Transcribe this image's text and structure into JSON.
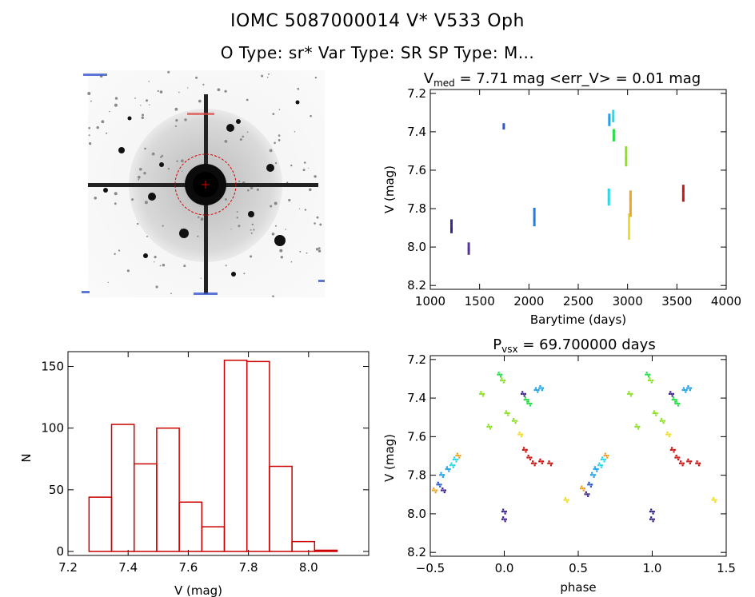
{
  "header": {
    "title": "IOMC 5087000014    V* V533 Oph",
    "subtitle": "O Type: sr*  Var Type: SR  SP Type: M..."
  },
  "colors": {
    "histogram": "#cc0000",
    "finder_circle": "#dd0000",
    "palette": [
      "#3a1f8a",
      "#2255cc",
      "#1aa0e8",
      "#22d8e8",
      "#22dd44",
      "#88e020",
      "#eedd22",
      "#f0a020",
      "#e05010",
      "#cc1010"
    ]
  },
  "chart_data": [
    {
      "id": "lightcurve",
      "type": "scatter",
      "title_prefix": "V",
      "title_sub": "med",
      "title_rest": " = 7.71 mag <err_V> = 0.01 mag",
      "xlabel": "Barytime (days)",
      "ylabel": "V (mag)",
      "xlim": [
        1000,
        4000
      ],
      "ylim": [
        8.22,
        7.18
      ],
      "xticks": [
        1000,
        1500,
        2000,
        2500,
        3000,
        3500,
        4000
      ],
      "yticks": [
        7.2,
        7.4,
        7.6,
        7.8,
        8.0,
        8.2
      ],
      "groups": [
        {
          "x": 1215,
          "y": [
            7.86,
            7.93
          ],
          "color": "#3a1f8a"
        },
        {
          "x": 1390,
          "y": [
            7.98,
            8.04
          ],
          "color": "#5030a0"
        },
        {
          "x": 1745,
          "y": [
            7.36,
            7.39
          ],
          "color": "#3050c0"
        },
        {
          "x": 2055,
          "y": [
            7.8,
            7.89
          ],
          "color": "#2277dd"
        },
        {
          "x": 2815,
          "y": [
            7.31,
            7.37
          ],
          "color": "#1aa0e8"
        },
        {
          "x": 2855,
          "y": [
            7.29,
            7.35
          ],
          "color": "#22d8e8"
        },
        {
          "x": 2810,
          "y": [
            7.7,
            7.78
          ],
          "color": "#22d8e8"
        },
        {
          "x": 2860,
          "y": [
            7.39,
            7.45
          ],
          "color": "#22dd44"
        },
        {
          "x": 2985,
          "y": [
            7.48,
            7.58
          ],
          "color": "#88e020"
        },
        {
          "x": 3015,
          "y": [
            7.83,
            7.96
          ],
          "color": "#eedd22"
        },
        {
          "x": 3030,
          "y": [
            7.71,
            7.84
          ],
          "color": "#f0a020"
        },
        {
          "x": 3565,
          "y": [
            7.68,
            7.76
          ],
          "color": "#cc1010"
        }
      ]
    },
    {
      "id": "histogram",
      "type": "bar",
      "xlabel": "V (mag)",
      "ylabel": "N",
      "xlim": [
        7.2,
        8.2
      ],
      "ylim": [
        0,
        162
      ],
      "xticks": [
        7.2,
        7.4,
        7.6,
        7.8,
        8.0
      ],
      "yticks": [
        0,
        50,
        100,
        150
      ],
      "bin_edges": [
        7.27,
        7.345,
        7.42,
        7.495,
        7.57,
        7.645,
        7.72,
        7.795,
        7.87,
        7.945,
        8.02,
        8.095
      ],
      "counts": [
        44,
        103,
        71,
        100,
        40,
        20,
        155,
        154,
        69,
        8,
        1
      ]
    },
    {
      "id": "phased",
      "type": "scatter",
      "title_prefix": "P",
      "title_sub": "vsx",
      "title_rest": " = 69.700000 days",
      "xlabel": "phase",
      "ylabel": "V (mag)",
      "xlim": [
        -0.5,
        1.5
      ],
      "ylim": [
        8.22,
        7.18
      ],
      "xticks": [
        -0.5,
        0.0,
        0.5,
        1.0,
        1.5
      ],
      "xticklabels": [
        "−0.5",
        "0.0",
        "0.5",
        "1.0",
        "1.5"
      ],
      "yticks": [
        7.2,
        7.4,
        7.6,
        7.8,
        8.0,
        8.2
      ],
      "points": [
        {
          "p": -0.47,
          "v": 7.88,
          "c": "#f0a020"
        },
        {
          "p": -0.44,
          "v": 7.85,
          "c": "#2255cc"
        },
        {
          "p": -0.42,
          "v": 7.8,
          "c": "#1aa0e8"
        },
        {
          "p": -0.41,
          "v": 7.88,
          "c": "#3a1f8a"
        },
        {
          "p": -0.38,
          "v": 7.77,
          "c": "#1aa0e8"
        },
        {
          "p": -0.35,
          "v": 7.75,
          "c": "#22d8e8"
        },
        {
          "p": -0.33,
          "v": 7.72,
          "c": "#22d8e8"
        },
        {
          "p": -0.31,
          "v": 7.7,
          "c": "#f0a020"
        },
        {
          "p": -0.15,
          "v": 7.38,
          "c": "#88e020"
        },
        {
          "p": -0.1,
          "v": 7.55,
          "c": "#88e020"
        },
        {
          "p": -0.03,
          "v": 7.28,
          "c": "#22dd44"
        },
        {
          "p": -0.01,
          "v": 7.31,
          "c": "#88e020"
        },
        {
          "p": 0.0,
          "v": 7.99,
          "c": "#3a1f8a"
        },
        {
          "p": 0.0,
          "v": 8.03,
          "c": "#3a1f8a"
        },
        {
          "p": 0.02,
          "v": 7.48,
          "c": "#88e020"
        },
        {
          "p": 0.07,
          "v": 7.52,
          "c": "#88e020"
        },
        {
          "p": 0.11,
          "v": 7.59,
          "c": "#eedd22"
        },
        {
          "p": 0.13,
          "v": 7.38,
          "c": "#3a1f8a"
        },
        {
          "p": 0.15,
          "v": 7.41,
          "c": "#22dd44"
        },
        {
          "p": 0.17,
          "v": 7.43,
          "c": "#22dd44"
        },
        {
          "p": 0.14,
          "v": 7.67,
          "c": "#cc1010"
        },
        {
          "p": 0.17,
          "v": 7.71,
          "c": "#cc1010"
        },
        {
          "p": 0.2,
          "v": 7.74,
          "c": "#cc1010"
        },
        {
          "p": 0.22,
          "v": 7.36,
          "c": "#1aa0e8"
        },
        {
          "p": 0.25,
          "v": 7.35,
          "c": "#1aa0e8"
        },
        {
          "p": 0.25,
          "v": 7.73,
          "c": "#cc1010"
        },
        {
          "p": 0.31,
          "v": 7.74,
          "c": "#cc1010"
        },
        {
          "p": 0.42,
          "v": 7.93,
          "c": "#eedd22"
        },
        {
          "p": 0.53,
          "v": 7.87,
          "c": "#f0a020"
        },
        {
          "p": 0.56,
          "v": 7.9,
          "c": "#3a1f8a"
        },
        {
          "p": 0.58,
          "v": 7.85,
          "c": "#2255cc"
        },
        {
          "p": 0.6,
          "v": 7.8,
          "c": "#1aa0e8"
        },
        {
          "p": 0.62,
          "v": 7.77,
          "c": "#1aa0e8"
        },
        {
          "p": 0.65,
          "v": 7.75,
          "c": "#22d8e8"
        },
        {
          "p": 0.67,
          "v": 7.72,
          "c": "#22d8e8"
        },
        {
          "p": 0.69,
          "v": 7.7,
          "c": "#f0a020"
        },
        {
          "p": 0.85,
          "v": 7.38,
          "c": "#88e020"
        },
        {
          "p": 0.9,
          "v": 7.55,
          "c": "#88e020"
        },
        {
          "p": 0.97,
          "v": 7.28,
          "c": "#22dd44"
        },
        {
          "p": 0.99,
          "v": 7.31,
          "c": "#88e020"
        },
        {
          "p": 1.0,
          "v": 7.99,
          "c": "#3a1f8a"
        },
        {
          "p": 1.0,
          "v": 8.03,
          "c": "#3a1f8a"
        },
        {
          "p": 1.02,
          "v": 7.48,
          "c": "#88e020"
        },
        {
          "p": 1.07,
          "v": 7.52,
          "c": "#88e020"
        },
        {
          "p": 1.11,
          "v": 7.59,
          "c": "#eedd22"
        },
        {
          "p": 1.13,
          "v": 7.38,
          "c": "#3a1f8a"
        },
        {
          "p": 1.15,
          "v": 7.41,
          "c": "#22dd44"
        },
        {
          "p": 1.17,
          "v": 7.43,
          "c": "#22dd44"
        },
        {
          "p": 1.14,
          "v": 7.67,
          "c": "#cc1010"
        },
        {
          "p": 1.17,
          "v": 7.71,
          "c": "#cc1010"
        },
        {
          "p": 1.2,
          "v": 7.74,
          "c": "#cc1010"
        },
        {
          "p": 1.22,
          "v": 7.36,
          "c": "#1aa0e8"
        },
        {
          "p": 1.25,
          "v": 7.35,
          "c": "#1aa0e8"
        },
        {
          "p": 1.25,
          "v": 7.73,
          "c": "#cc1010"
        },
        {
          "p": 1.31,
          "v": 7.74,
          "c": "#cc1010"
        },
        {
          "p": 1.42,
          "v": 7.93,
          "c": "#eedd22"
        }
      ]
    }
  ]
}
